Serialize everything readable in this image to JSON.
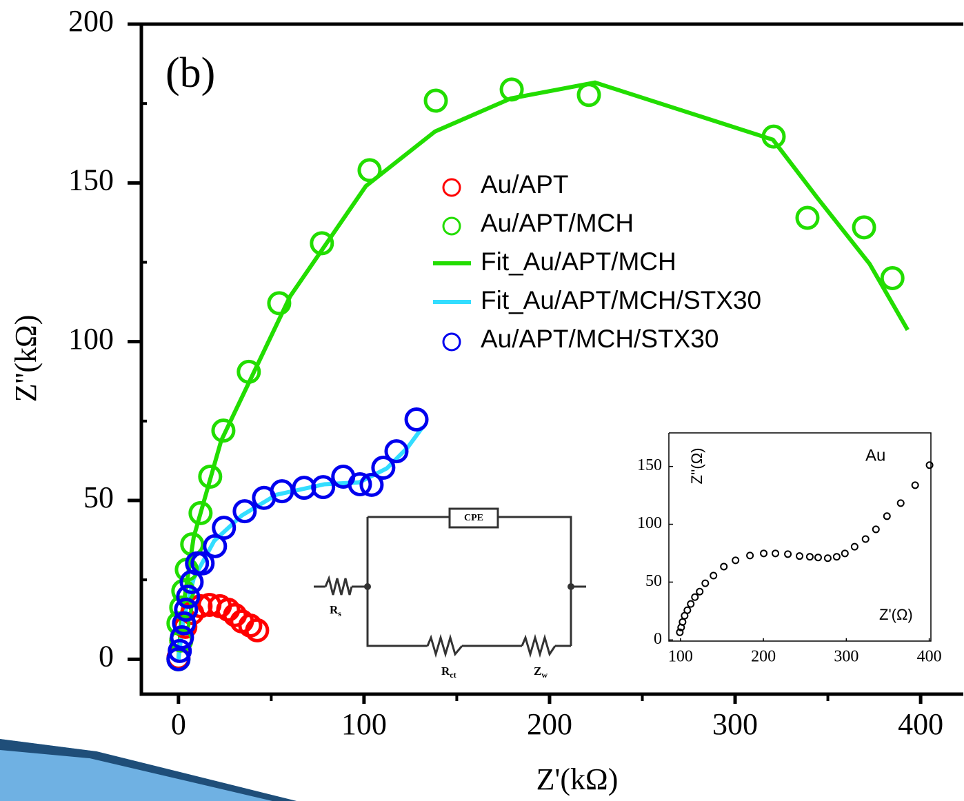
{
  "chart_data": [
    {
      "type": "scatter",
      "panel_label": "(b)",
      "x_label": "Z'(kΩ)",
      "y_label": "Z''(kΩ)",
      "xlim": [
        -20,
        423
      ],
      "ylim": [
        -11,
        200
      ],
      "xticks": [
        0,
        100,
        200,
        300,
        400
      ],
      "yticks": [
        0,
        50,
        100,
        150,
        200
      ],
      "xminorticks": [
        50,
        150,
        250,
        350
      ],
      "yminorticks": [
        25,
        75,
        125,
        175
      ],
      "series": [
        {
          "name": "Au/APT",
          "color": "#ff0000",
          "style": "marker",
          "x": [
            0,
            1.5,
            3.7,
            7.4,
            11.9,
            16.7,
            22.3,
            26.8,
            30.5,
            34.2,
            38.7,
            42.4
          ],
          "values": [
            0.4,
            5.9,
            10.2,
            14.5,
            16.7,
            17.1,
            16.7,
            15.6,
            13.9,
            11.9,
            10.6,
            9.1
          ]
        },
        {
          "name": "Au/APT/MCH",
          "color": "#22dd00",
          "style": "marker",
          "x": [
            0,
            1.5,
            0,
            1.5,
            2.6,
            4.5,
            7.4,
            11.9,
            17.1,
            24.2,
            37.9,
            54.3,
            77.3,
            103,
            138.7,
            179.6,
            221.2,
            320.8,
            339,
            369.5,
            384.8
          ],
          "values": [
            0,
            5.9,
            11.3,
            16.3,
            21.5,
            28.2,
            36.2,
            46,
            57.5,
            72,
            90.5,
            112.1,
            131,
            154,
            175.9,
            179.4,
            177.7,
            164.6,
            139,
            136,
            120
          ]
        },
        {
          "name": "Fit_Au/APT/MCH",
          "color": "#22dd00",
          "style": "line",
          "x": [
            0,
            1.5,
            8.2,
            23,
            60.2,
            101,
            138.3,
            179.2,
            224.5,
            320.4,
            344.6,
            372.5,
            393
          ],
          "values": [
            0,
            12.4,
            38.4,
            68.8,
            114.3,
            149,
            166.2,
            176.6,
            181.6,
            163.6,
            145.1,
            124.5,
            103.7
          ]
        },
        {
          "name": "Fit_Au/APT/MCH/STX30",
          "color": "#33ddff",
          "style": "line",
          "x": [
            0,
            2.6,
            8.2,
            19.3,
            34.2,
            52.8,
            78.8,
            97.4,
            112.3,
            123.4,
            131.6
          ],
          "values": [
            0,
            12.4,
            25.4,
            37.3,
            45.3,
            51.8,
            55.1,
            55.7,
            60.1,
            66.6,
            73.1
          ]
        },
        {
          "name": "Au/APT/MCH/STX30",
          "color": "#0000ee",
          "style": "marker",
          "x": [
            0,
            0.7,
            1.9,
            3,
            4.1,
            5.2,
            7.1,
            10,
            13,
            19.7,
            24.5,
            35.7,
            46.1,
            55.8,
            67.7,
            78,
            88.8,
            97.8,
            104.1,
            110.4,
            117.5,
            128.3
          ],
          "values": [
            0,
            2.6,
            6.9,
            11.3,
            15.6,
            19.7,
            24.3,
            30.2,
            30.2,
            35.6,
            41.4,
            46.6,
            50.8,
            52.9,
            54,
            54.2,
            57.5,
            55.1,
            54.9,
            60.3,
            65.5,
            75.5
          ]
        }
      ]
    },
    {
      "type": "scatter",
      "annotation": "Au",
      "x_label": "Z'(Ω)",
      "y_label": "Z''(Ω)",
      "xlim": [
        86,
        402
      ],
      "ylim": [
        -1,
        179
      ],
      "xticks": [
        100,
        200,
        300,
        400
      ],
      "yticks": [
        0,
        50,
        100,
        150
      ],
      "series": [
        {
          "color": "#000000",
          "style": "marker",
          "x": [
            99.2,
            100.8,
            102.5,
            105,
            108.3,
            112.4,
            117.4,
            123.2,
            129.9,
            139.8,
            152.3,
            166.4,
            183.8,
            200.4,
            214.5,
            229.5,
            243.6,
            256,
            266,
            277.6,
            288.4,
            298.3,
            310,
            323.2,
            335.7,
            349,
            365.6,
            383,
            400.4
          ],
          "values": [
            6.6,
            10.8,
            15.5,
            20.9,
            25.7,
            31.1,
            37,
            41.8,
            49,
            55.6,
            63.4,
            68.8,
            73,
            74.8,
            74.8,
            74.2,
            72.5,
            71.9,
            71.3,
            70.7,
            71.9,
            74.8,
            80.6,
            87.2,
            95.6,
            107,
            118.3,
            133.8,
            151.1
          ]
        }
      ]
    }
  ],
  "circuit": {
    "cpe": "CPE",
    "rs": [
      "R",
      "s"
    ],
    "rct": [
      "R",
      "ct"
    ],
    "zw": [
      "Z",
      "w"
    ]
  }
}
